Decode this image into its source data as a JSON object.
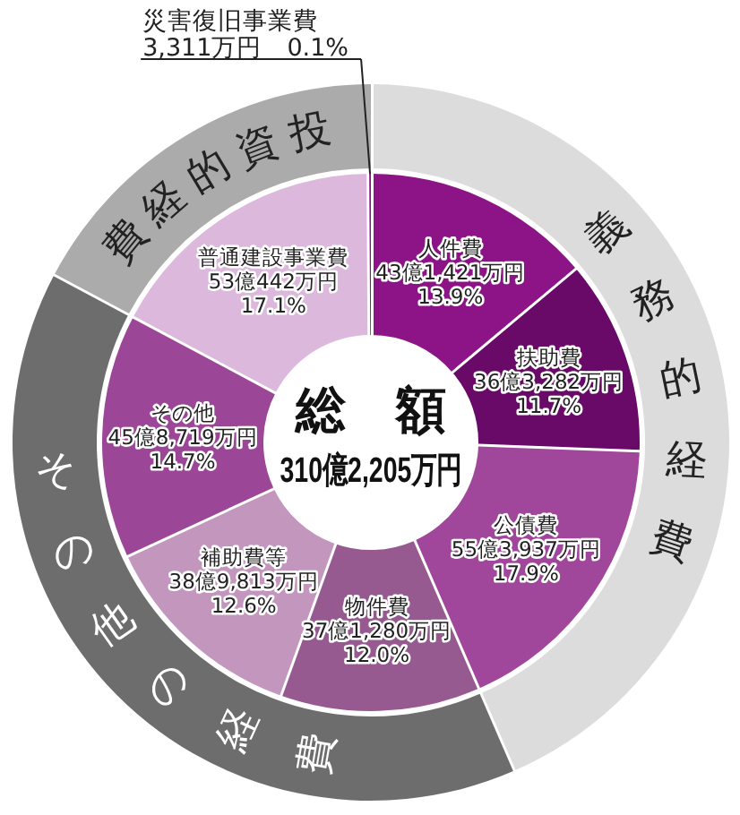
{
  "chart_data": [
    {
      "type": "donut",
      "title": "総　額",
      "subtitle": "310億2,205万円",
      "categories": [
        "人件費",
        "扶助費",
        "公債費",
        "物件費",
        "補助費等",
        "その他",
        "普通建設事業費",
        "災害復旧事業費"
      ],
      "values": [
        13.9,
        11.7,
        17.9,
        12.0,
        12.6,
        14.7,
        17.1,
        0.1
      ],
      "colors": [
        "#8c1487",
        "#690a69",
        "#a0469b",
        "#965a91",
        "#c396be",
        "#9b4696",
        "#dcb9dc",
        "#8c1487"
      ],
      "value_labels": [
        "43億1,421万円\n13.9%",
        "36億3,282万円\n11.7%",
        "55億3,937万円\n17.9%",
        "37億1,280万円\n12.0%",
        "38億9,813万円\n12.6%",
        "45億8,719万円\n14.7%",
        "53億442万円\n17.1%",
        "3,311万円　0.1%"
      ]
    },
    {
      "type": "donut",
      "categories": [
        "義務的経費",
        "その他の経費",
        "投資的経費"
      ],
      "values": [
        43.5,
        39.3,
        17.2
      ],
      "colors": [
        "#dcdcdd",
        "#6d6d6d",
        "#ababab"
      ]
    }
  ]
}
